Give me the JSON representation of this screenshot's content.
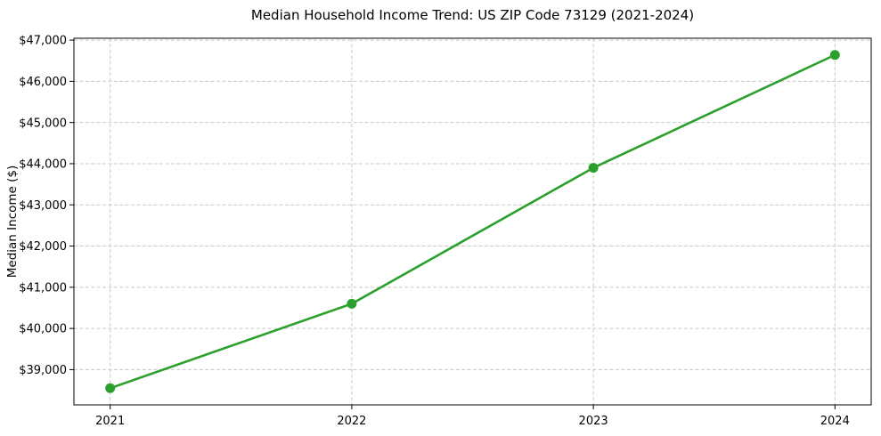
{
  "chart_data": {
    "type": "line",
    "title": "Median Household Income Trend: US ZIP Code 73129 (2021-2024)",
    "xlabel": "",
    "ylabel": "Median Income ($)",
    "categories": [
      "2021",
      "2022",
      "2023",
      "2024"
    ],
    "values": [
      38550,
      40600,
      43900,
      46640
    ],
    "ytick_values": [
      39000,
      40000,
      41000,
      42000,
      43000,
      44000,
      45000,
      46000,
      47000
    ],
    "ytick_labels": [
      "$39,000",
      "$40,000",
      "$41,000",
      "$42,000",
      "$43,000",
      "$44,000",
      "$45,000",
      "$46,000",
      "$47,000"
    ],
    "ylim": [
      38145,
      47045
    ],
    "grid": true,
    "grid_style": "dashed",
    "legend": "none",
    "colors": {
      "line": "#2ca02c",
      "marker": "#2ca02c",
      "grid": "#c9c9c9",
      "spine": "#000000",
      "text": "#000000",
      "background": "#ffffff"
    }
  }
}
